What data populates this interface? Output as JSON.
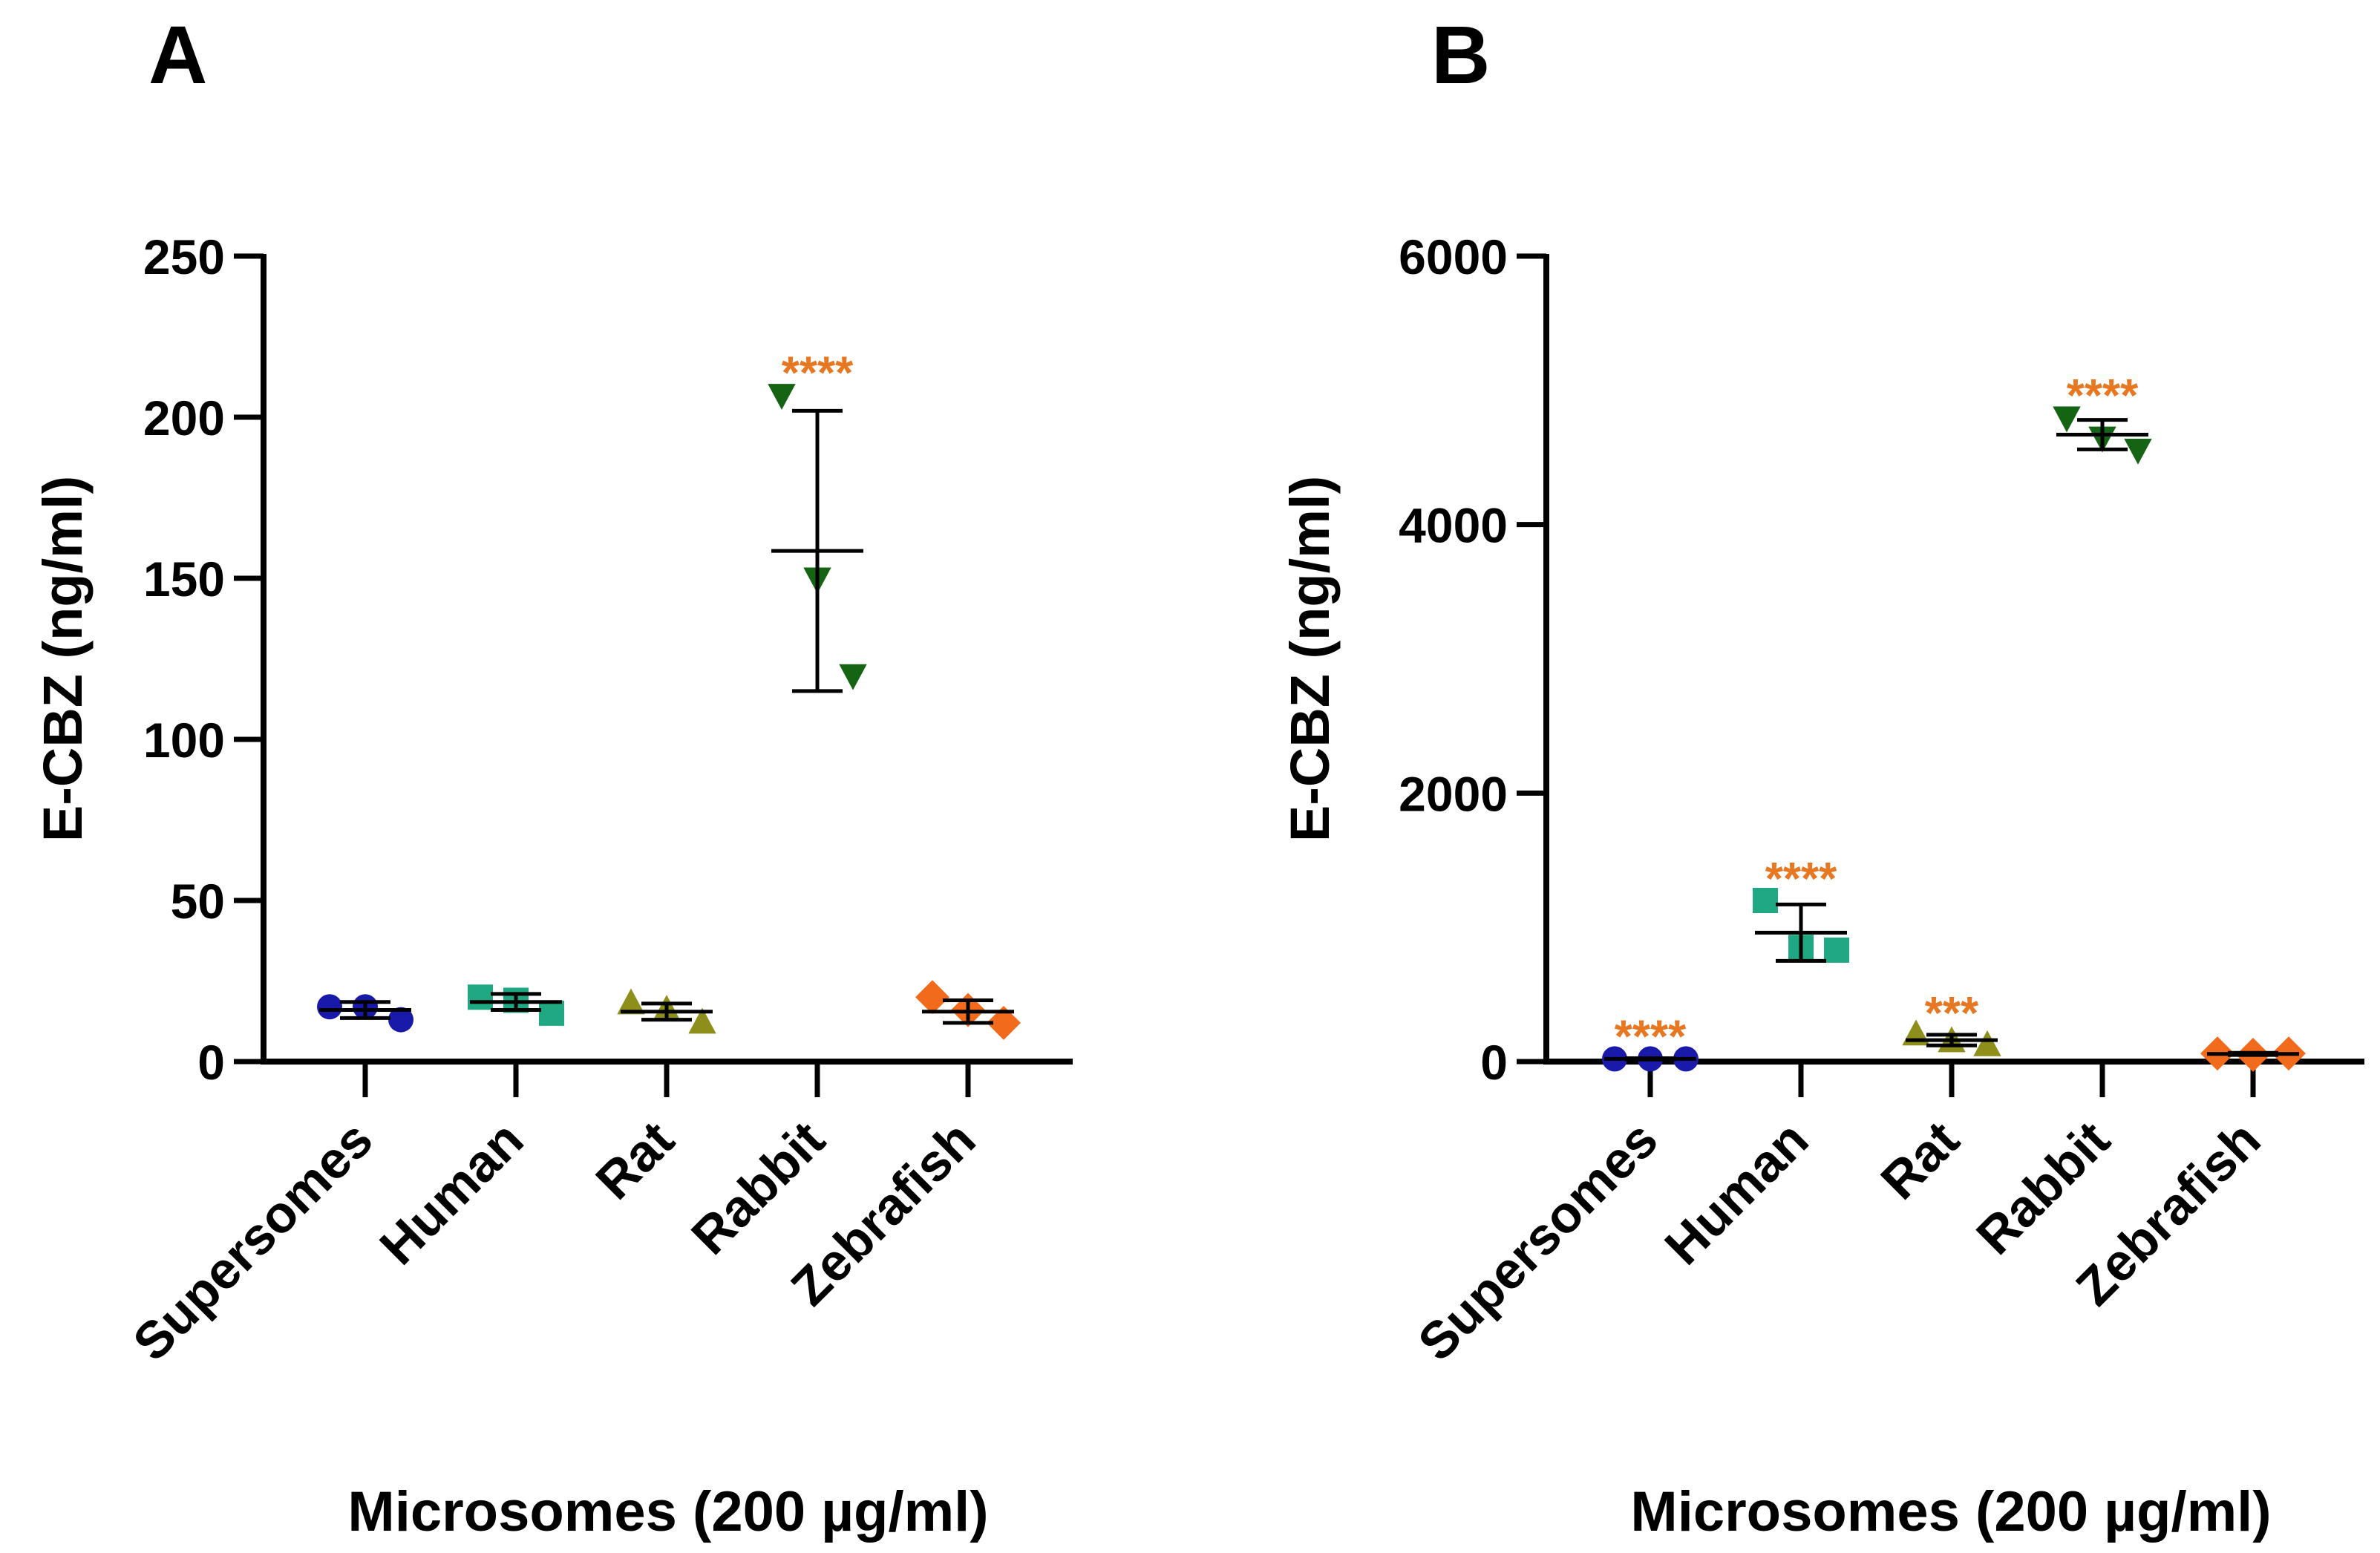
{
  "panels": [
    {
      "letter": "A"
    },
    {
      "letter": "B"
    }
  ],
  "colors": {
    "axis": "#000000",
    "significance": "#E87722",
    "Supersomes": "#1A1AAA",
    "Human": "#1FA882",
    "Rat": "#8E8E1A",
    "Rabbit": "#146414",
    "Zebrafish": "#F26A1B"
  },
  "chart_data": [
    {
      "type": "scatter",
      "panel": "A",
      "xlabel": "Microsomes (200 µg/ml)",
      "ylabel": "E-CBZ (ng/ml)",
      "ylim": [
        0,
        250
      ],
      "yticks": [
        0,
        50,
        100,
        150,
        200,
        250
      ],
      "categories": [
        "Supersomes",
        "Human",
        "Rat",
        "Rabbit",
        "Zebrafish"
      ],
      "markers": [
        "circle",
        "square",
        "triangle-up",
        "triangle-down",
        "diamond"
      ],
      "series": [
        {
          "name": "Supersomes",
          "values": [
            17,
            17,
            13
          ],
          "mean": 16,
          "sd": 2.5,
          "sig": ""
        },
        {
          "name": "Human",
          "values": [
            20,
            19,
            15
          ],
          "mean": 18.5,
          "sd": 2.5,
          "sig": ""
        },
        {
          "name": "Rat",
          "values": [
            18,
            16,
            12
          ],
          "mean": 15.5,
          "sd": 2.5,
          "sig": ""
        },
        {
          "name": "Rabbit",
          "values": [
            207,
            150,
            120
          ],
          "mean": 158.5,
          "sd": 43.5,
          "sig": "****"
        },
        {
          "name": "Zebrafish",
          "values": [
            20,
            16,
            12
          ],
          "mean": 15.5,
          "sd": 3.5,
          "sig": ""
        }
      ]
    },
    {
      "type": "scatter",
      "panel": "B",
      "xlabel": "Microsomes (200 µg/ml)",
      "ylabel": "E-CBZ (ng/ml)",
      "ylim": [
        0,
        6000
      ],
      "yticks": [
        0,
        2000,
        4000,
        6000
      ],
      "categories": [
        "Supersomes",
        "Human",
        "Rat",
        "Rabbit",
        "Zebrafish"
      ],
      "markers": [
        "circle",
        "square",
        "triangle-up",
        "triangle-down",
        "diamond"
      ],
      "series": [
        {
          "name": "Supersomes",
          "values": [
            20,
            20,
            20
          ],
          "mean": 20,
          "sd": 5,
          "sig": "****"
        },
        {
          "name": "Human",
          "values": [
            1200,
            850,
            830
          ],
          "mean": 960,
          "sd": 210,
          "sig": "****"
        },
        {
          "name": "Rat",
          "values": [
            200,
            150,
            120
          ],
          "mean": 160,
          "sd": 40,
          "sig": "***"
        },
        {
          "name": "Rabbit",
          "values": [
            4800,
            4650,
            4560
          ],
          "mean": 4670,
          "sd": 110,
          "sig": "****"
        },
        {
          "name": "Zebrafish",
          "values": [
            60,
            50,
            60
          ],
          "mean": 57,
          "sd": 8,
          "sig": ""
        }
      ]
    }
  ]
}
